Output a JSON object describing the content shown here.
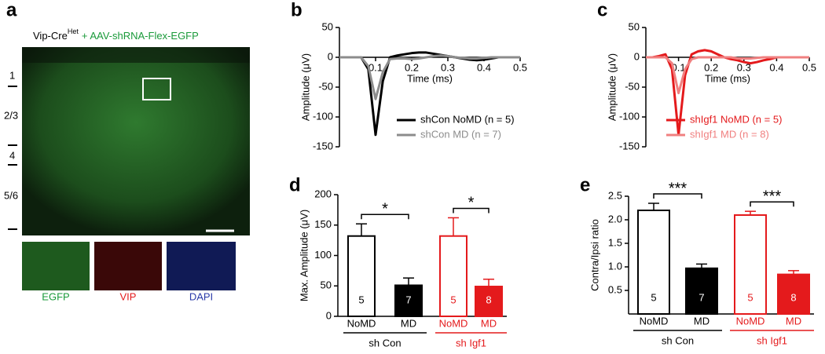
{
  "image_panel": {
    "panel": "a",
    "title_prefix": "Vip-Cre",
    "title_superscript": "Het",
    "title_suffix": "+ AAV-shRNA-Flex-EGFP",
    "layers": [
      "1",
      "2/3",
      "4",
      "5/6"
    ],
    "insets": [
      "EGFP",
      "VIP",
      "DAPI"
    ]
  },
  "chart_data": [
    {
      "type": "line",
      "panel": "b",
      "xlabel": "Time (ms)",
      "ylabel": "Amplitude (μV)",
      "xlim": [
        0,
        0.5
      ],
      "xticks": [
        0.1,
        0.2,
        0.3,
        0.4,
        0.5
      ],
      "ylim": [
        -150,
        50
      ],
      "yticks": [
        -150,
        -100,
        -50,
        0,
        50
      ],
      "x": [
        0,
        0.02,
        0.04,
        0.06,
        0.08,
        0.1,
        0.12,
        0.14,
        0.16,
        0.18,
        0.2,
        0.22,
        0.24,
        0.26,
        0.28,
        0.3,
        0.32,
        0.34,
        0.36,
        0.38,
        0.4,
        0.42,
        0.44,
        0.46,
        0.48,
        0.5
      ],
      "series": [
        {
          "name": "shCon NoMD (n = 5)",
          "color": "#000000",
          "values": [
            0,
            0,
            0,
            0,
            -20,
            -130,
            -40,
            0,
            3,
            5,
            7,
            8,
            8,
            6,
            4,
            2,
            0,
            -2,
            -4,
            -5,
            -4,
            -2,
            0,
            0,
            0,
            0
          ]
        },
        {
          "name": "shCon MD (n = 7)",
          "color": "#8c8c8c",
          "values": [
            0,
            0,
            0,
            0,
            -15,
            -70,
            -25,
            -3,
            -2,
            -2,
            -3,
            -2,
            0,
            2,
            3,
            2,
            0,
            -1,
            -2,
            -2,
            -1,
            0,
            0,
            0,
            0,
            0
          ]
        }
      ]
    },
    {
      "type": "line",
      "panel": "c",
      "xlabel": "Time (ms)",
      "ylabel": "Amplitude (μV)",
      "xlim": [
        0,
        0.5
      ],
      "xticks": [
        0.1,
        0.2,
        0.3,
        0.4,
        0.5
      ],
      "ylim": [
        -150,
        50
      ],
      "yticks": [
        -150,
        -100,
        -50,
        0,
        50
      ],
      "x": [
        0,
        0.02,
        0.04,
        0.06,
        0.08,
        0.1,
        0.12,
        0.14,
        0.16,
        0.18,
        0.2,
        0.22,
        0.24,
        0.26,
        0.28,
        0.3,
        0.32,
        0.34,
        0.36,
        0.38,
        0.4,
        0.42,
        0.44,
        0.46,
        0.48,
        0.5
      ],
      "series": [
        {
          "name": "shIgf1 NoMD (n = 5)",
          "color": "#e41a1c",
          "values": [
            0,
            0,
            2,
            5,
            -20,
            -130,
            -30,
            5,
            10,
            12,
            10,
            5,
            0,
            -3,
            -5,
            -8,
            -10,
            -8,
            -5,
            -3,
            0,
            0,
            0,
            0,
            0,
            0
          ]
        },
        {
          "name": "shIgf1 MD (n = 8)",
          "color": "#f08080",
          "values": [
            0,
            0,
            0,
            0,
            -10,
            -60,
            -20,
            -3,
            0,
            0,
            0,
            0,
            0,
            0,
            -2,
            -2,
            -2,
            -1,
            0,
            0,
            0,
            0,
            0,
            0,
            0,
            0
          ]
        }
      ]
    },
    {
      "type": "bar",
      "panel": "d",
      "ylabel": "Max. Amplitude (μV)",
      "ylim": [
        0,
        200
      ],
      "yticks": [
        0,
        50,
        100,
        150,
        200
      ],
      "categories": [
        "NoMD",
        "MD",
        "NoMD",
        "MD"
      ],
      "values": [
        132,
        51,
        132,
        49
      ],
      "errors": [
        20,
        12,
        30,
        12
      ],
      "n": [
        5,
        7,
        5,
        8
      ],
      "bar_colors": [
        "#000000",
        "#000000",
        "#e41a1c",
        "#e41a1c"
      ],
      "filled": [
        false,
        true,
        false,
        true
      ],
      "groups": [
        {
          "label": "sh Con",
          "color": "#000000"
        },
        {
          "label": "sh Igf1",
          "color": "#e41a1c"
        }
      ],
      "significance": [
        "*",
        "*"
      ]
    },
    {
      "type": "bar",
      "panel": "e",
      "ylabel": "Contra/Ipsi ratio",
      "ylim": [
        0,
        2.5
      ],
      "yticks": [
        0.5,
        {
          "value": 1,
          "label": "1.0"
        },
        1.5,
        {
          "value": 2,
          "label": "2.0"
        },
        2.5
      ],
      "categories": [
        "NoMD",
        "MD",
        "NoMD",
        "MD"
      ],
      "values": [
        2.2,
        0.97,
        2.1,
        0.84
      ],
      "errors": [
        0.15,
        0.09,
        0.08,
        0.08
      ],
      "n": [
        5,
        7,
        5,
        8
      ],
      "bar_colors": [
        "#000000",
        "#000000",
        "#e41a1c",
        "#e41a1c"
      ],
      "filled": [
        false,
        true,
        false,
        true
      ],
      "groups": [
        {
          "label": "sh Con",
          "color": "#000000"
        },
        {
          "label": "sh Igf1",
          "color": "#e41a1c"
        }
      ],
      "significance": [
        "***",
        "***"
      ]
    }
  ]
}
